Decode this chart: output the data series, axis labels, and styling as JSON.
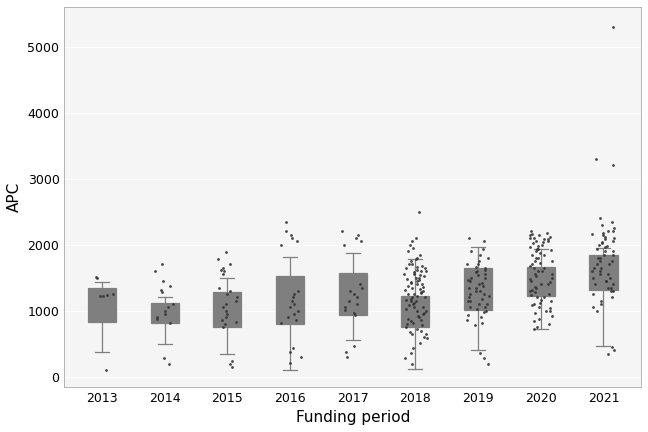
{
  "title": "",
  "xlabel": "Funding period",
  "ylabel": "APC",
  "years": [
    2013,
    2014,
    2015,
    2016,
    2017,
    2018,
    2019,
    2020,
    2021
  ],
  "box_stats": {
    "2013": {
      "q1": 830,
      "median": 1230,
      "q3": 1340,
      "whislo": 380,
      "whishi": 1440
    },
    "2014": {
      "q1": 810,
      "median": 960,
      "q3": 1110,
      "whislo": 490,
      "whishi": 1200
    },
    "2015": {
      "q1": 760,
      "median": 1060,
      "q3": 1280,
      "whislo": 350,
      "whishi": 1500
    },
    "2016": {
      "q1": 800,
      "median": 960,
      "q3": 1520,
      "whislo": 100,
      "whishi": 1820
    },
    "2017": {
      "q1": 930,
      "median": 1100,
      "q3": 1570,
      "whislo": 560,
      "whishi": 1870
    },
    "2018": {
      "q1": 750,
      "median": 950,
      "q3": 1220,
      "whislo": 120,
      "whishi": 1780
    },
    "2019": {
      "q1": 1010,
      "median": 1260,
      "q3": 1640,
      "whislo": 410,
      "whishi": 1970
    },
    "2020": {
      "q1": 1220,
      "median": 1400,
      "q3": 1660,
      "whislo": 720,
      "whishi": 1940
    },
    "2021": {
      "q1": 1310,
      "median": 1660,
      "q3": 1840,
      "whislo": 460,
      "whishi": 1950
    }
  },
  "scatter_points": {
    "2013": [
      100,
      1490,
      1510,
      1230,
      1240,
      1220,
      1250
    ],
    "2014": [
      200,
      290,
      1280,
      1310,
      1380,
      1450,
      1600,
      1700,
      820,
      870,
      910,
      950,
      1000,
      1050,
      1100
    ],
    "2015": [
      150,
      190,
      240,
      1550,
      1600,
      1620,
      1650,
      1700,
      1780,
      1890,
      900,
      950,
      1000,
      1050,
      1100,
      1150,
      1200,
      1250,
      1300,
      1350,
      760,
      800,
      830,
      860
    ],
    "2016": [
      210,
      300,
      380,
      440,
      2000,
      2050,
      2100,
      2150,
      2200,
      2350,
      900,
      950,
      1000,
      1050,
      1100,
      1150,
      1200,
      1250,
      1300,
      820,
      860
    ],
    "2017": [
      300,
      380,
      460,
      2000,
      2050,
      2100,
      2150,
      2200,
      930,
      970,
      1010,
      1050,
      1100,
      1150,
      1200,
      1250,
      1300,
      1350,
      1400
    ],
    "2018": [
      200,
      280,
      360,
      440,
      510,
      590,
      650,
      700,
      1800,
      1850,
      1900,
      1950,
      2000,
      2050,
      2100,
      2500,
      750,
      800,
      850,
      900,
      950,
      1000,
      1050,
      1100,
      1150,
      1200,
      1250,
      1300,
      1350,
      1400,
      1450,
      1500,
      1550,
      1600,
      1650,
      1700,
      1750,
      1780,
      600,
      650,
      680,
      720,
      780,
      820,
      860,
      880,
      920,
      960,
      990,
      1020,
      1060,
      1090,
      1110,
      1140,
      1160,
      1180,
      1210,
      1230,
      1250,
      1270,
      1290,
      1310,
      1330,
      1360,
      1380,
      1400,
      1420,
      1440,
      1460,
      1480,
      1500,
      1520,
      1540,
      1560,
      1580,
      1600,
      1620,
      1640,
      1660,
      1680,
      1700
    ],
    "2019": [
      200,
      280,
      360,
      2050,
      2100,
      1000,
      1050,
      1100,
      1150,
      1200,
      1250,
      1300,
      1350,
      1400,
      1450,
      1500,
      1550,
      1600,
      1650,
      1700,
      1750,
      1800,
      1850,
      1900,
      1940,
      780,
      820,
      860,
      900,
      940,
      980,
      1020,
      1060,
      1100,
      1140,
      1180,
      1220,
      1260,
      1300,
      1340,
      1380,
      1420,
      1460,
      1500,
      1540,
      1580,
      1620,
      1660,
      1700
    ],
    "2020": [
      720,
      760,
      800,
      840,
      880,
      920,
      960,
      1000,
      1040,
      1080,
      1120,
      1160,
      1200,
      1240,
      1280,
      1320,
      1360,
      1400,
      1440,
      1480,
      1520,
      1560,
      1600,
      1640,
      1680,
      1720,
      1760,
      1800,
      1840,
      1880,
      1920,
      1940,
      2050,
      2080,
      2100,
      2150,
      1000,
      1050,
      1100,
      1150,
      1200,
      1250,
      1300,
      1350,
      1400,
      1450,
      1500,
      1550,
      1600,
      1650,
      1700,
      1750,
      1800,
      1850,
      1900,
      1940,
      1960,
      1980,
      2000,
      2020,
      2040,
      2060,
      2080,
      2100,
      2120,
      2140,
      2160,
      2180,
      2200
    ],
    "2021": [
      350,
      400,
      450,
      2200,
      2250,
      2300,
      2350,
      2400,
      3200,
      3300,
      5300,
      1300,
      1350,
      1400,
      1450,
      1500,
      1550,
      1600,
      1650,
      1700,
      1750,
      1800,
      1850,
      1900,
      1940,
      1960,
      1980,
      2000,
      2020,
      2040,
      2060,
      2080,
      2100,
      2120,
      2140,
      2160,
      2180,
      2200,
      1000,
      1050,
      1100,
      1150,
      1200,
      1250,
      1300,
      1350,
      1400,
      1450,
      1500,
      1550,
      1600,
      1650,
      1700,
      1750,
      1800,
      1850,
      1900
    ]
  },
  "ylim": [
    -150,
    5600
  ],
  "yticks": [
    0,
    1000,
    2000,
    3000,
    4000,
    5000
  ],
  "background_color": "#ffffff",
  "panel_background": "#f5f5f5",
  "grid_color": "#ffffff",
  "box_face_color": "#ffffff",
  "box_edge_color": "#7f7f7f",
  "median_color": "#7f7f7f",
  "whisker_color": "#7f7f7f",
  "flier_color": "#333333",
  "jitter_color": "#333333",
  "box_width": 0.45,
  "jitter_alpha": 0.9,
  "jitter_size": 2.0,
  "flier_size": 2.0,
  "tick_fontsize": 9,
  "label_fontsize": 11
}
